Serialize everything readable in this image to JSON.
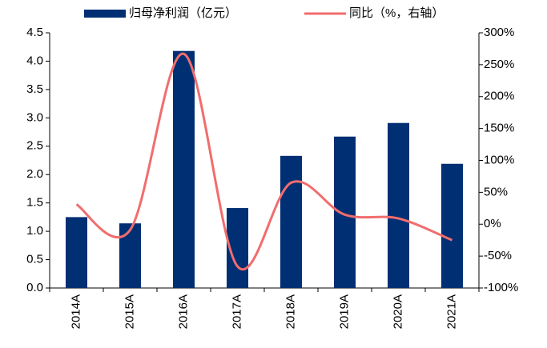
{
  "chart_data": {
    "type": "bar",
    "categories": [
      "2014A",
      "2015A",
      "2016A",
      "2017A",
      "2018A",
      "2019A",
      "2020A",
      "2021A"
    ],
    "series": [
      {
        "name": "归母净利润（亿元）",
        "color": "#002f73",
        "type": "bar",
        "values": [
          1.25,
          1.14,
          4.18,
          1.41,
          2.33,
          2.67,
          2.91,
          2.19
        ]
      },
      {
        "name": "同比（%，右轴）",
        "color": "#f16d6d",
        "type": "line",
        "axis": "y2",
        "values": [
          31,
          -9,
          267,
          -66,
          65,
          15,
          9,
          -25
        ]
      }
    ],
    "ylim": [
      0,
      4.5
    ],
    "yticks": [
      {
        "value": 0,
        "label": "0.0"
      },
      0.5,
      {
        "value": 1,
        "label": "1.0"
      },
      1.5,
      {
        "value": 2,
        "label": "2.0"
      },
      2.5,
      {
        "value": 3,
        "label": "3.0"
      },
      3.5,
      {
        "value": 4,
        "label": "4.0"
      },
      4.5
    ],
    "y2lim": [
      -100,
      300
    ],
    "y2ticks": [
      {
        "value": -100,
        "label": "-100%"
      },
      {
        "value": -50,
        "label": "-50%"
      },
      {
        "value": 0,
        "label": "0%"
      },
      {
        "value": 50,
        "label": "50%"
      },
      {
        "value": 100,
        "label": "100%"
      },
      {
        "value": 150,
        "label": "150%"
      },
      {
        "value": 200,
        "label": "200%"
      },
      {
        "value": 250,
        "label": "250%"
      },
      {
        "value": 300,
        "label": "300%"
      }
    ],
    "grid": false
  }
}
